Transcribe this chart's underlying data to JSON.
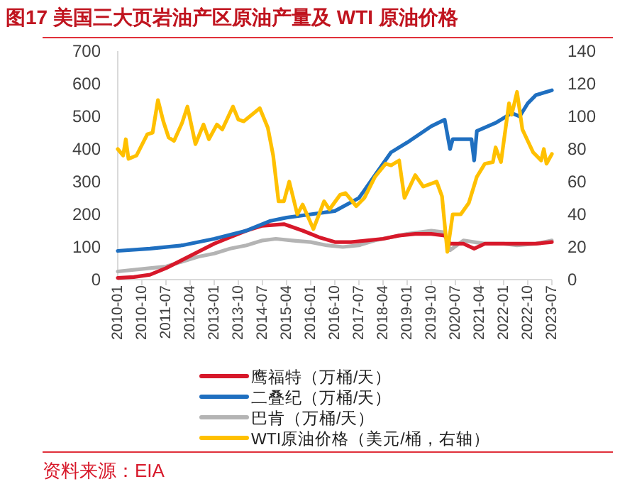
{
  "chart_data": {
    "type": "line",
    "title": "图17  美国三大页岩油产区原油产量及 WTI 原油价格",
    "xlim": [
      "2010-01",
      "2023-07"
    ],
    "xticks": [
      "2010-01",
      "2010-10",
      "2011-07",
      "2012-04",
      "2013-01",
      "2013-10",
      "2014-07",
      "2015-04",
      "2016-01",
      "2016-10",
      "2017-07",
      "2018-04",
      "2019-01",
      "2019-10",
      "2020-07",
      "2021-04",
      "2022-01",
      "2022-10",
      "2023-07"
    ],
    "ylim": [
      0,
      700
    ],
    "yticks": [
      0,
      100,
      200,
      300,
      400,
      500,
      600,
      700
    ],
    "y2lim": [
      0,
      140
    ],
    "y2ticks": [
      0,
      20,
      40,
      60,
      80,
      100,
      120,
      140
    ],
    "legend": "bottom",
    "series": [
      {
        "name": "鹰福特（万桶/天）",
        "color": "#d7182a",
        "x": [
          "2010-01",
          "2010-07",
          "2011-01",
          "2011-07",
          "2012-01",
          "2012-07",
          "2013-01",
          "2013-07",
          "2014-01",
          "2014-07",
          "2015-03",
          "2015-10",
          "2016-04",
          "2016-10",
          "2017-04",
          "2017-10",
          "2018-04",
          "2018-10",
          "2019-04",
          "2019-10",
          "2020-03",
          "2020-05",
          "2020-10",
          "2021-02",
          "2021-06",
          "2022-01",
          "2022-07",
          "2023-01",
          "2023-07"
        ],
        "values": [
          5,
          8,
          15,
          35,
          60,
          85,
          110,
          130,
          150,
          165,
          170,
          150,
          130,
          115,
          115,
          120,
          125,
          135,
          140,
          140,
          135,
          110,
          110,
          95,
          110,
          110,
          110,
          110,
          115
        ]
      },
      {
        "name": "二叠纪（万桶/天）",
        "color": "#1f6fc0",
        "x": [
          "2010-01",
          "2011-01",
          "2012-01",
          "2013-01",
          "2014-01",
          "2014-10",
          "2015-04",
          "2016-01",
          "2016-10",
          "2017-07",
          "2018-01",
          "2018-07",
          "2019-01",
          "2019-10",
          "2020-03",
          "2020-05",
          "2020-06",
          "2021-01",
          "2021-02",
          "2021-03",
          "2021-10",
          "2022-04",
          "2022-07",
          "2022-10",
          "2023-01",
          "2023-07"
        ],
        "values": [
          88,
          95,
          105,
          125,
          150,
          180,
          190,
          200,
          210,
          250,
          320,
          390,
          420,
          470,
          490,
          400,
          430,
          430,
          365,
          455,
          480,
          510,
          500,
          540,
          565,
          580
        ]
      },
      {
        "name": "巴肯（万桶/天）",
        "color": "#b4b4b4",
        "x": [
          "2010-01",
          "2011-01",
          "2011-07",
          "2012-01",
          "2012-07",
          "2013-01",
          "2013-07",
          "2014-01",
          "2014-07",
          "2014-12",
          "2015-06",
          "2016-01",
          "2016-07",
          "2017-01",
          "2017-07",
          "2018-01",
          "2018-07",
          "2019-01",
          "2019-10",
          "2020-03",
          "2020-05",
          "2020-10",
          "2021-02",
          "2021-06",
          "2022-01",
          "2022-06",
          "2023-01",
          "2023-07"
        ],
        "values": [
          25,
          35,
          40,
          55,
          70,
          80,
          95,
          105,
          120,
          125,
          120,
          115,
          105,
          100,
          105,
          120,
          130,
          140,
          150,
          145,
          90,
          120,
          115,
          110,
          110,
          105,
          110,
          120
        ]
      },
      {
        "name": "WTI原油价格（美元/桶，右轴）",
        "color": "#ffc000",
        "axis": "y2",
        "x": [
          "2010-01",
          "2010-03",
          "2010-04",
          "2010-05",
          "2010-08",
          "2010-12",
          "2011-02",
          "2011-04",
          "2011-06",
          "2011-08",
          "2011-10",
          "2012-01",
          "2012-03",
          "2012-06",
          "2012-09",
          "2012-11",
          "2013-02",
          "2013-04",
          "2013-08",
          "2013-10",
          "2013-12",
          "2014-03",
          "2014-06",
          "2014-09",
          "2014-11",
          "2015-01",
          "2015-03",
          "2015-05",
          "2015-08",
          "2015-10",
          "2016-02",
          "2016-06",
          "2016-08",
          "2016-12",
          "2017-02",
          "2017-06",
          "2017-09",
          "2018-01",
          "2018-05",
          "2018-07",
          "2018-10",
          "2018-12",
          "2019-04",
          "2019-07",
          "2019-12",
          "2020-02",
          "2020-04",
          "2020-06",
          "2020-09",
          "2020-12",
          "2021-03",
          "2021-06",
          "2021-09",
          "2021-10",
          "2021-12",
          "2022-03",
          "2022-04",
          "2022-06",
          "2022-08",
          "2022-10",
          "2022-12",
          "2023-03",
          "2023-04",
          "2023-05",
          "2023-07"
        ],
        "values": [
          80,
          76,
          86,
          74,
          76,
          89,
          90,
          110,
          97,
          87,
          85,
          96,
          106,
          83,
          95,
          86,
          95,
          92,
          106,
          98,
          97,
          101,
          105,
          93,
          76,
          48,
          48,
          60,
          40,
          46,
          31,
          48,
          43,
          52,
          53,
          45,
          50,
          63,
          71,
          70,
          73,
          50,
          64,
          57,
          60,
          51,
          17,
          40,
          40,
          47,
          63,
          71,
          72,
          81,
          72,
          108,
          101,
          115,
          92,
          85,
          78,
          73,
          80,
          71,
          77
        ]
      }
    ],
    "annotations": [
      "资料来源：EIA"
    ]
  }
}
